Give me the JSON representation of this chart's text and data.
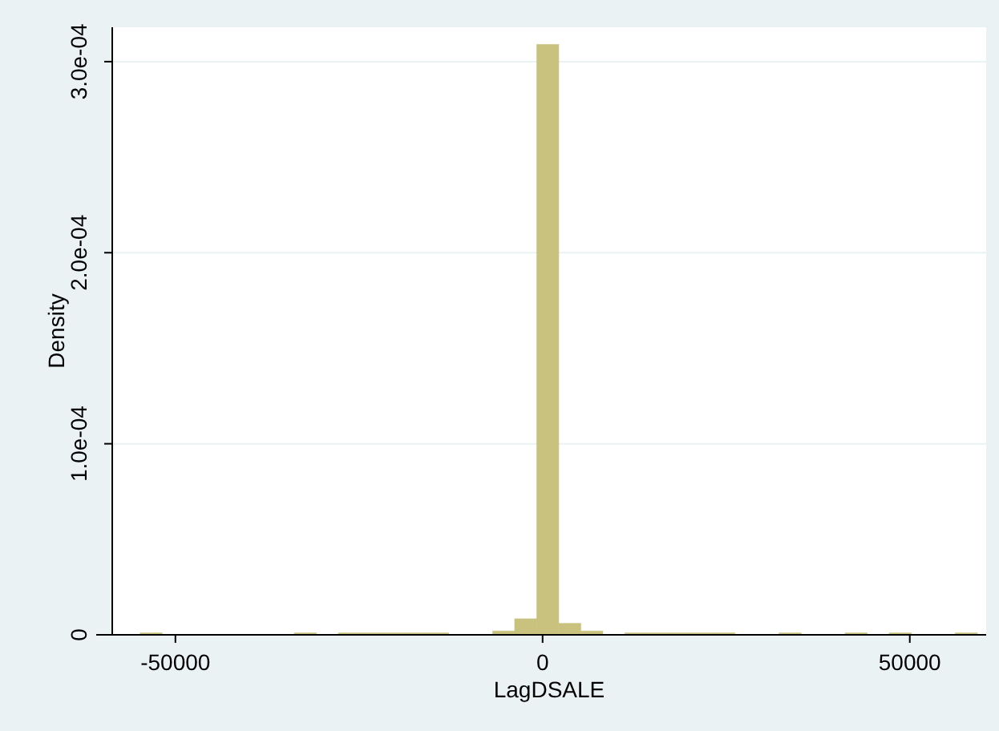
{
  "chart_data": {
    "type": "histogram",
    "xlabel": "LagDSALE",
    "ylabel": "Density",
    "bins": [
      -54800,
      -51800,
      -48800,
      -45800,
      -42800,
      -39800,
      -36800,
      -33800,
      -30800,
      -27800,
      -24800,
      -21800,
      -18800,
      -15800,
      -12800,
      -9800,
      -6800,
      -3800,
      -800,
      2200,
      5200,
      8200,
      11200,
      14200,
      17200,
      20200,
      23200,
      26200,
      29200,
      32200,
      35200,
      38200,
      41200,
      44200,
      47200,
      50200,
      53200,
      56200,
      59200
    ],
    "values": [
      1e-06,
      0,
      0,
      0,
      0,
      0,
      0,
      1e-06,
      0,
      1e-06,
      1e-06,
      1e-06,
      1e-06,
      1e-06,
      0,
      0,
      2e-06,
      8.4e-06,
      0.000309,
      6e-06,
      2e-06,
      0,
      1e-06,
      1e-06,
      1e-06,
      1e-06,
      1e-06,
      0,
      0,
      1e-06,
      0,
      0,
      1e-06,
      0,
      1e-06,
      0,
      0,
      1e-06
    ],
    "color": "#c9c27f",
    "xlim": [
      -58600,
      60400
    ],
    "xticks": [
      -50000,
      0,
      50000
    ],
    "ylim": [
      0,
      0.000318
    ],
    "yticks": [
      {
        "value": 0,
        "label": "0"
      },
      {
        "value": 0.0001,
        "label": "1.0e-04"
      },
      {
        "value": 0.0002,
        "label": "2.0e-04"
      },
      {
        "value": 0.0003,
        "label": "3.0e-04"
      }
    ],
    "grid": "y"
  }
}
